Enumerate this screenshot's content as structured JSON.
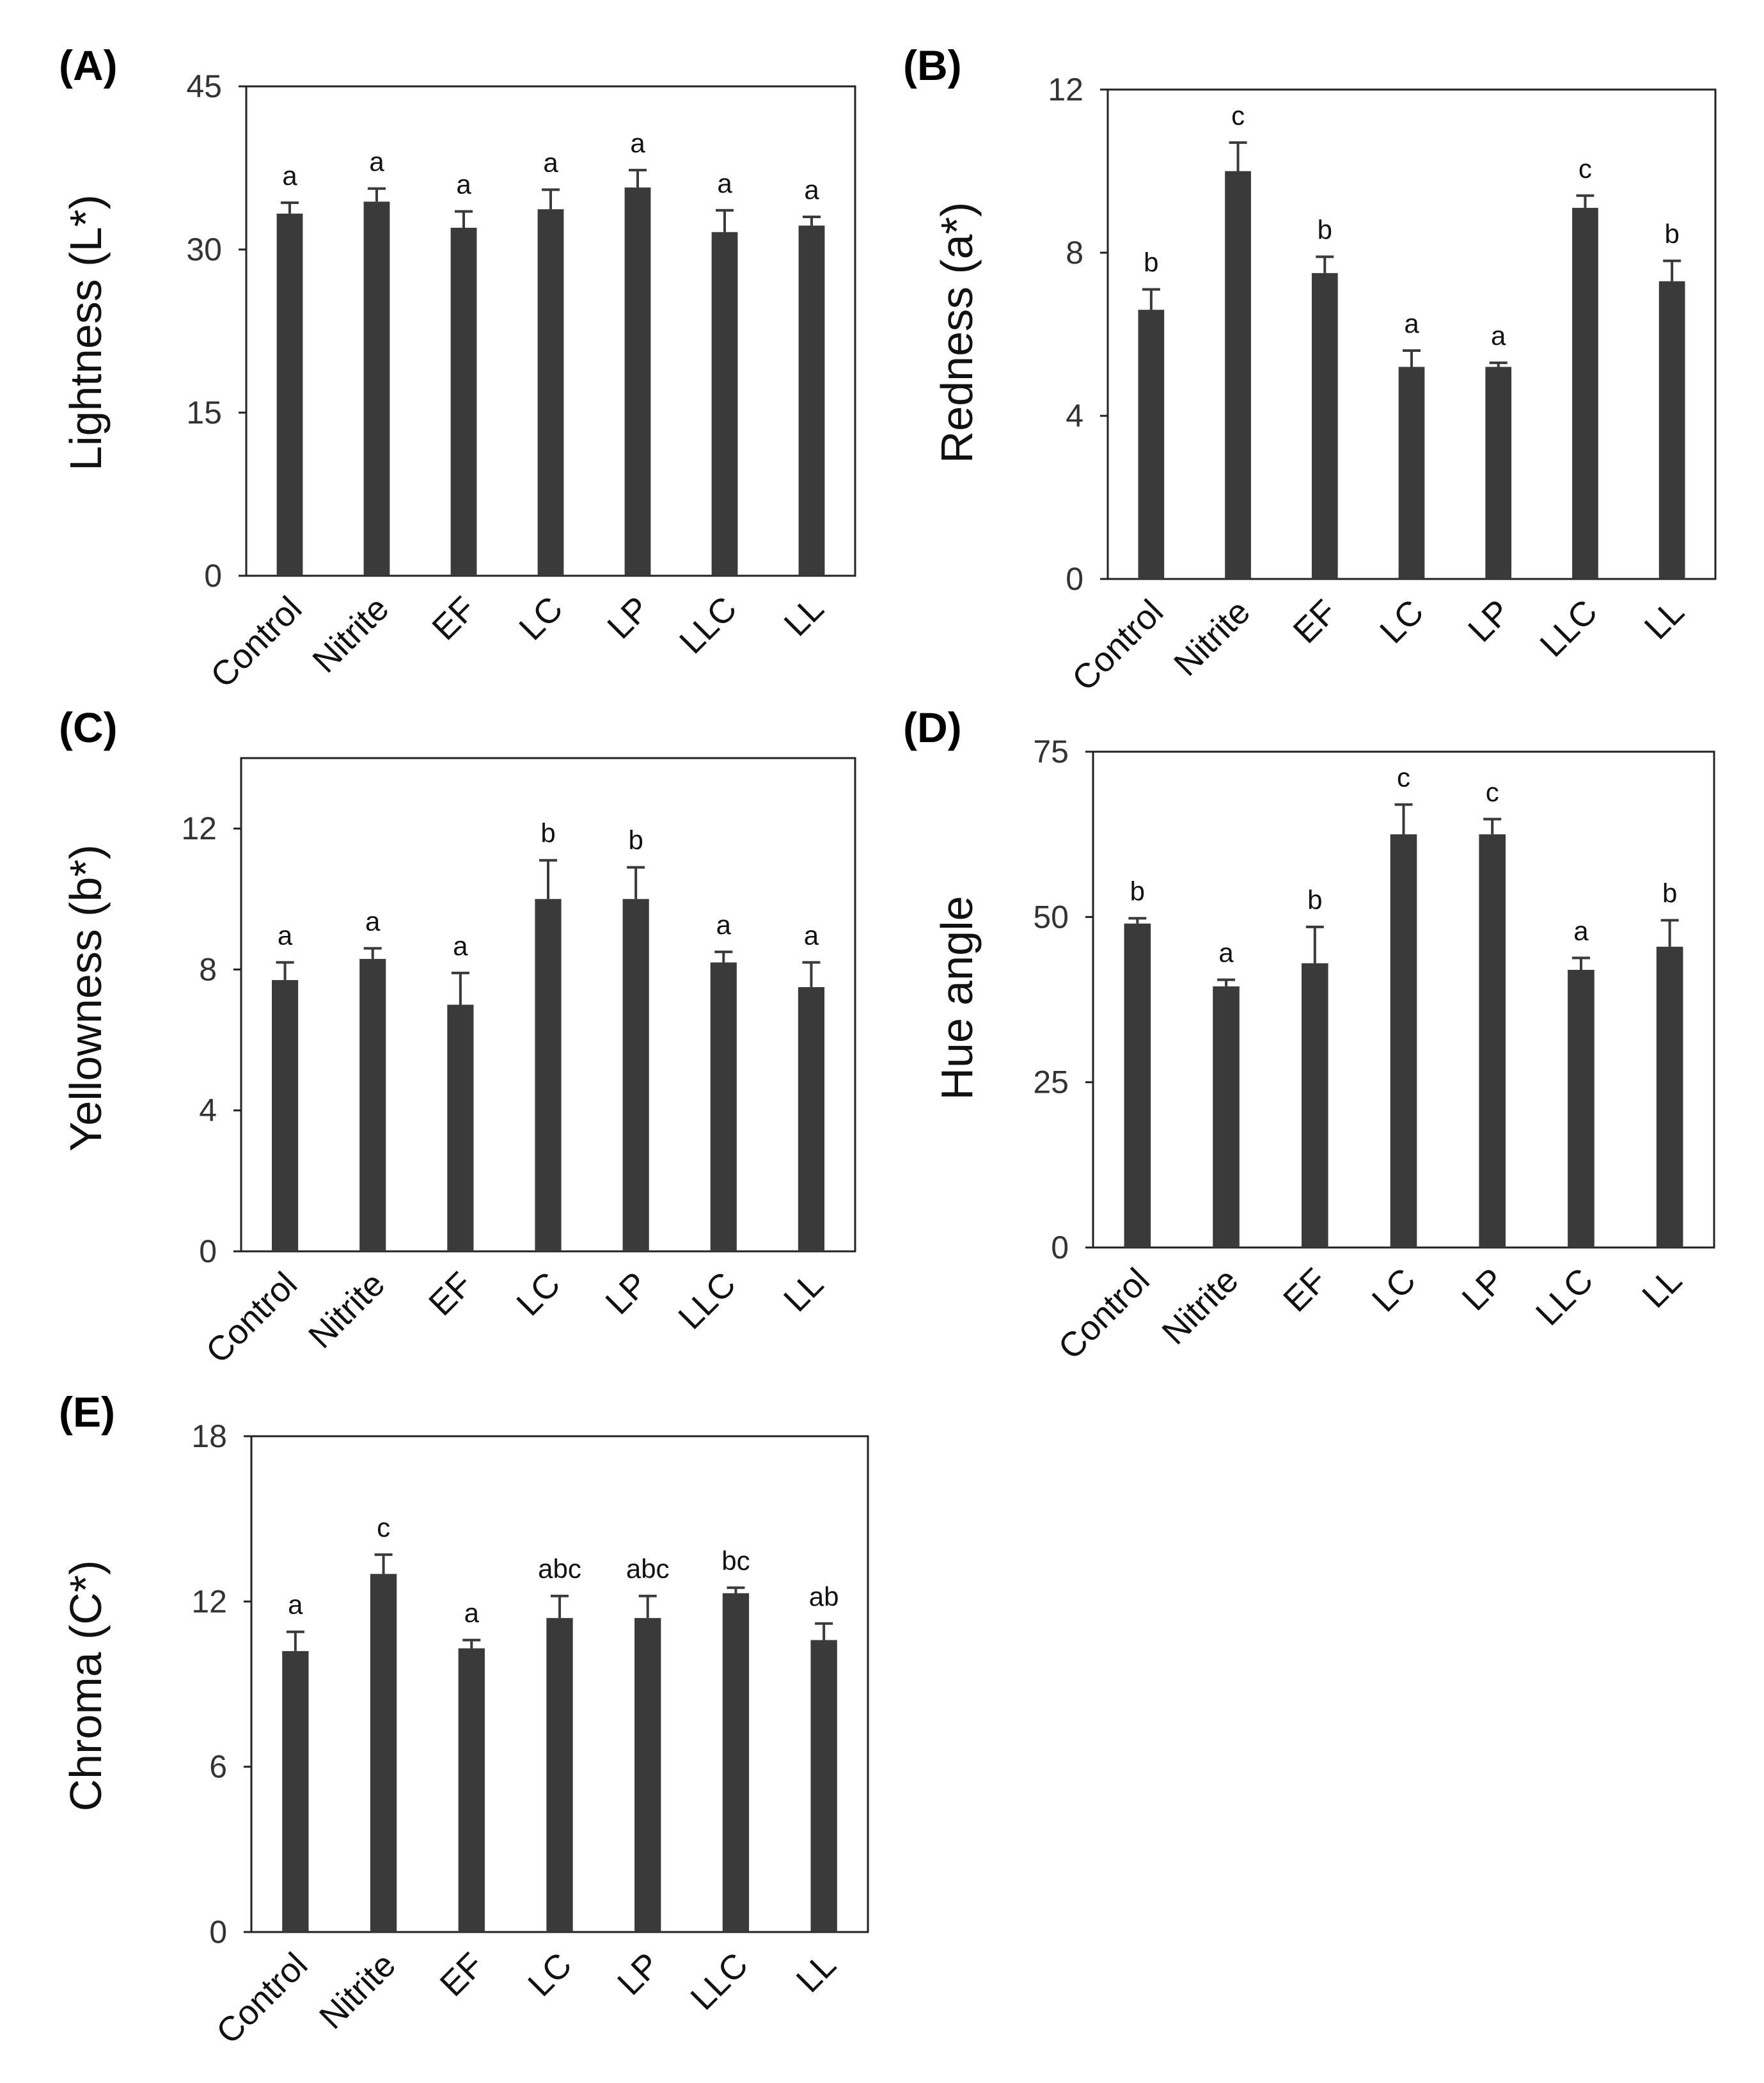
{
  "chart_data": [
    {
      "type": "bar",
      "panel_label": "(A)",
      "ylabel": "Lightness (L*)",
      "categories": [
        "Control",
        "Nitrite",
        "EF",
        "LC",
        "LP",
        "LLC",
        "LL"
      ],
      "values": [
        33.3,
        34.4,
        32.0,
        33.7,
        35.7,
        31.6,
        32.2
      ],
      "errors": [
        1.0,
        1.2,
        1.5,
        1.8,
        1.6,
        2.0,
        0.8
      ],
      "significance": [
        "a",
        "a",
        "a",
        "a",
        "a",
        "a",
        "a"
      ],
      "yticks": [
        "0",
        "15",
        "30",
        "45"
      ],
      "ylim": [
        0,
        45
      ]
    },
    {
      "type": "bar",
      "panel_label": "(B)",
      "ylabel": "Redness (a*)",
      "categories": [
        "Control",
        "Nitrite",
        "EF",
        "LC",
        "LP",
        "LLC",
        "LL"
      ],
      "values": [
        6.6,
        10.0,
        7.5,
        5.2,
        5.2,
        9.1,
        7.3
      ],
      "errors": [
        0.5,
        0.7,
        0.4,
        0.4,
        0.1,
        0.3,
        0.5
      ],
      "significance": [
        "b",
        "c",
        "b",
        "a",
        "a",
        "c",
        "b"
      ],
      "yticks": [
        "0",
        "4",
        "8",
        "12"
      ],
      "ylim": [
        0,
        12
      ]
    },
    {
      "type": "bar",
      "panel_label": "(C)",
      "ylabel": "Yellowness (b*)",
      "categories": [
        "Control",
        "Nitrite",
        "EF",
        "LC",
        "LP",
        "LLC",
        "LL"
      ],
      "values": [
        7.7,
        8.3,
        7.0,
        10.0,
        10.0,
        8.2,
        7.5
      ],
      "errors": [
        0.5,
        0.3,
        0.9,
        1.1,
        0.9,
        0.3,
        0.7
      ],
      "significance": [
        "a",
        "a",
        "a",
        "b",
        "b",
        "a",
        "a"
      ],
      "yticks": [
        "0",
        "4",
        "8",
        "12"
      ],
      "ylim": [
        0,
        14
      ]
    },
    {
      "type": "bar",
      "panel_label": "(D)",
      "ylabel": "Hue angle",
      "categories": [
        "Control",
        "Nitrite",
        "EF",
        "LC",
        "LP",
        "LLC",
        "LL"
      ],
      "values": [
        49.0,
        39.5,
        43.0,
        62.5,
        62.5,
        42.0,
        45.5
      ],
      "errors": [
        0.8,
        1.0,
        5.5,
        4.5,
        2.3,
        1.8,
        4.0
      ],
      "significance": [
        "b",
        "a",
        "b",
        "c",
        "c",
        "a",
        "b"
      ],
      "yticks": [
        "0",
        "25",
        "50",
        "75"
      ],
      "ylim": [
        0,
        75
      ]
    },
    {
      "type": "bar",
      "panel_label": "(E)",
      "ylabel": "Chroma (C*)",
      "categories": [
        "Control",
        "Nitrite",
        "EF",
        "LC",
        "LP",
        "LLC",
        "LL"
      ],
      "values": [
        10.2,
        13.0,
        10.3,
        11.4,
        11.4,
        12.3,
        10.6
      ],
      "errors": [
        0.7,
        0.7,
        0.3,
        0.8,
        0.8,
        0.2,
        0.6
      ],
      "significance": [
        "a",
        "c",
        "a",
        "abc",
        "abc",
        "bc",
        "ab"
      ],
      "yticks": [
        "0",
        "6",
        "12",
        "18"
      ],
      "ylim": [
        0,
        18
      ]
    }
  ],
  "colors": {
    "bar": "#3a3a3a",
    "frame": "#222222"
  }
}
